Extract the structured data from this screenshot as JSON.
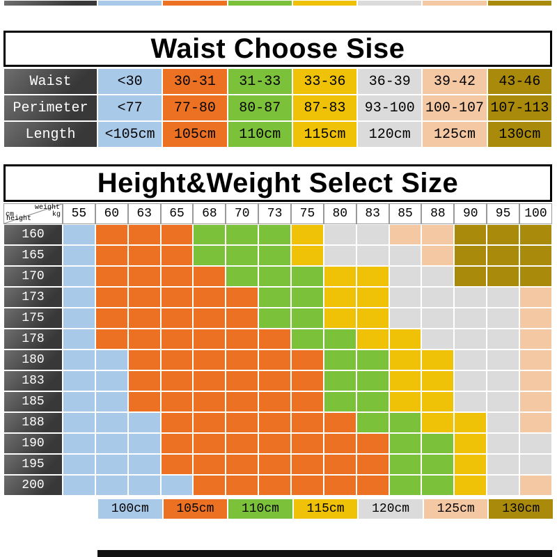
{
  "chart_data": [
    {
      "type": "table",
      "title": "Waist Choose Sise",
      "rows": [
        {
          "label": "Waist",
          "values": [
            "<30",
            "30-31",
            "31-33",
            "33-36",
            "36-39",
            "39-42",
            "43-46"
          ]
        },
        {
          "label": "Perimeter",
          "values": [
            "<77",
            "77-80",
            "80-87",
            "87-83",
            "93-100",
            "100-107",
            "107-113"
          ]
        },
        {
          "label": "Length",
          "values": [
            "<105cm",
            "105cm",
            "110cm",
            "115cm",
            "120cm",
            "125cm",
            "130cm"
          ]
        }
      ]
    },
    {
      "type": "heatmap",
      "title": "Height&Weight Select Size",
      "x_axis": {
        "label": "weight",
        "unit": "kg",
        "values": [
          "55",
          "60",
          "63",
          "65",
          "68",
          "70",
          "73",
          "75",
          "80",
          "83",
          "85",
          "88",
          "90",
          "95",
          "100"
        ]
      },
      "y_axis": {
        "label": "height",
        "unit": "cm",
        "values": [
          "160",
          "165",
          "170",
          "173",
          "175",
          "178",
          "180",
          "183",
          "185",
          "188",
          "190",
          "195",
          "200"
        ]
      },
      "cell_size_codes": [
        "booogggyeeppddd",
        "booogggyeeepddd",
        "boooogggyyeeddd",
        "boooooggyyeeeep",
        "boooooggyyeeeep",
        "booooooggyyeeep",
        "bbooooooggyyeep",
        "bbooooooggyyeep",
        "bbooooooggyyeep",
        "bbbooooooggyyep",
        "bbboooooooggyee",
        "bbboooooooggyee",
        "bbbbooooooggyep"
      ],
      "legend": [
        {
          "code": "b",
          "size": "100cm",
          "color": "#A9C9E9"
        },
        {
          "code": "o",
          "size": "105cm",
          "color": "#EC7123"
        },
        {
          "code": "g",
          "size": "110cm",
          "color": "#7CC13A"
        },
        {
          "code": "y",
          "size": "115cm",
          "color": "#EFC207"
        },
        {
          "code": "e",
          "size": "120cm",
          "color": "#DBDBDB"
        },
        {
          "code": "p",
          "size": "125cm",
          "color": "#F5C8A4"
        },
        {
          "code": "d",
          "size": "130cm",
          "color": "#AA8A0B"
        }
      ]
    }
  ]
}
